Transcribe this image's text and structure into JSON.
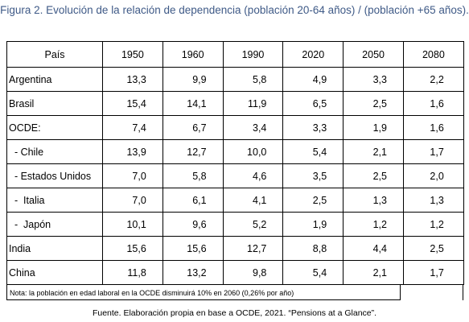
{
  "title": "Figura 2. Evolución de la relación de dependencia (población 20-64 años) / (población +65 años).",
  "table": {
    "headers": [
      "País",
      "1950",
      "1960",
      "1990",
      "2020",
      "2050",
      "2080"
    ],
    "rows": [
      {
        "country": "Argentina",
        "values": [
          "13,3",
          "9,9",
          "5,8",
          "4,9",
          "3,3",
          "2,2"
        ]
      },
      {
        "country": "Brasil",
        "values": [
          "15,4",
          "14,1",
          "11,9",
          "6,5",
          "2,5",
          "1,6"
        ]
      },
      {
        "country": "OCDE:",
        "values": [
          "7,4",
          "6,7",
          "3,4",
          "3,3",
          "1,9",
          "1,6"
        ]
      },
      {
        "country": "  - Chile",
        "values": [
          "13,9",
          "12,7",
          "10,0",
          "5,4",
          "2,1",
          "1,7"
        ]
      },
      {
        "country": "  - Estados Unidos",
        "values": [
          "7,0",
          "5,8",
          "4,6",
          "3,5",
          "2,5",
          "2,0"
        ]
      },
      {
        "country": "  -  Italia",
        "values": [
          "7,0",
          "6,1",
          "4,1",
          "2,5",
          "1,3",
          "1,3"
        ]
      },
      {
        "country": "  -  Japón",
        "values": [
          "10,1",
          "9,6",
          "5,2",
          "1,9",
          "1,2",
          "1,2"
        ]
      },
      {
        "country": "India",
        "values": [
          "15,6",
          "15,6",
          "12,7",
          "8,8",
          "4,4",
          "2,5"
        ]
      },
      {
        "country": "China",
        "values": [
          "11,8",
          "13,2",
          "9,8",
          "5,4",
          "2,1",
          "1,7"
        ]
      }
    ]
  },
  "note": "Nota: la población en edad laboral en la OCDE disminuirá 10% en 2060 (0,26% por año)",
  "source": "Fuente. Elaboración propia en base a OCDE, 2021. “Pensions at a Glance”.",
  "colors": {
    "title": "#3f5a87",
    "text": "#000000",
    "border": "#000000"
  }
}
